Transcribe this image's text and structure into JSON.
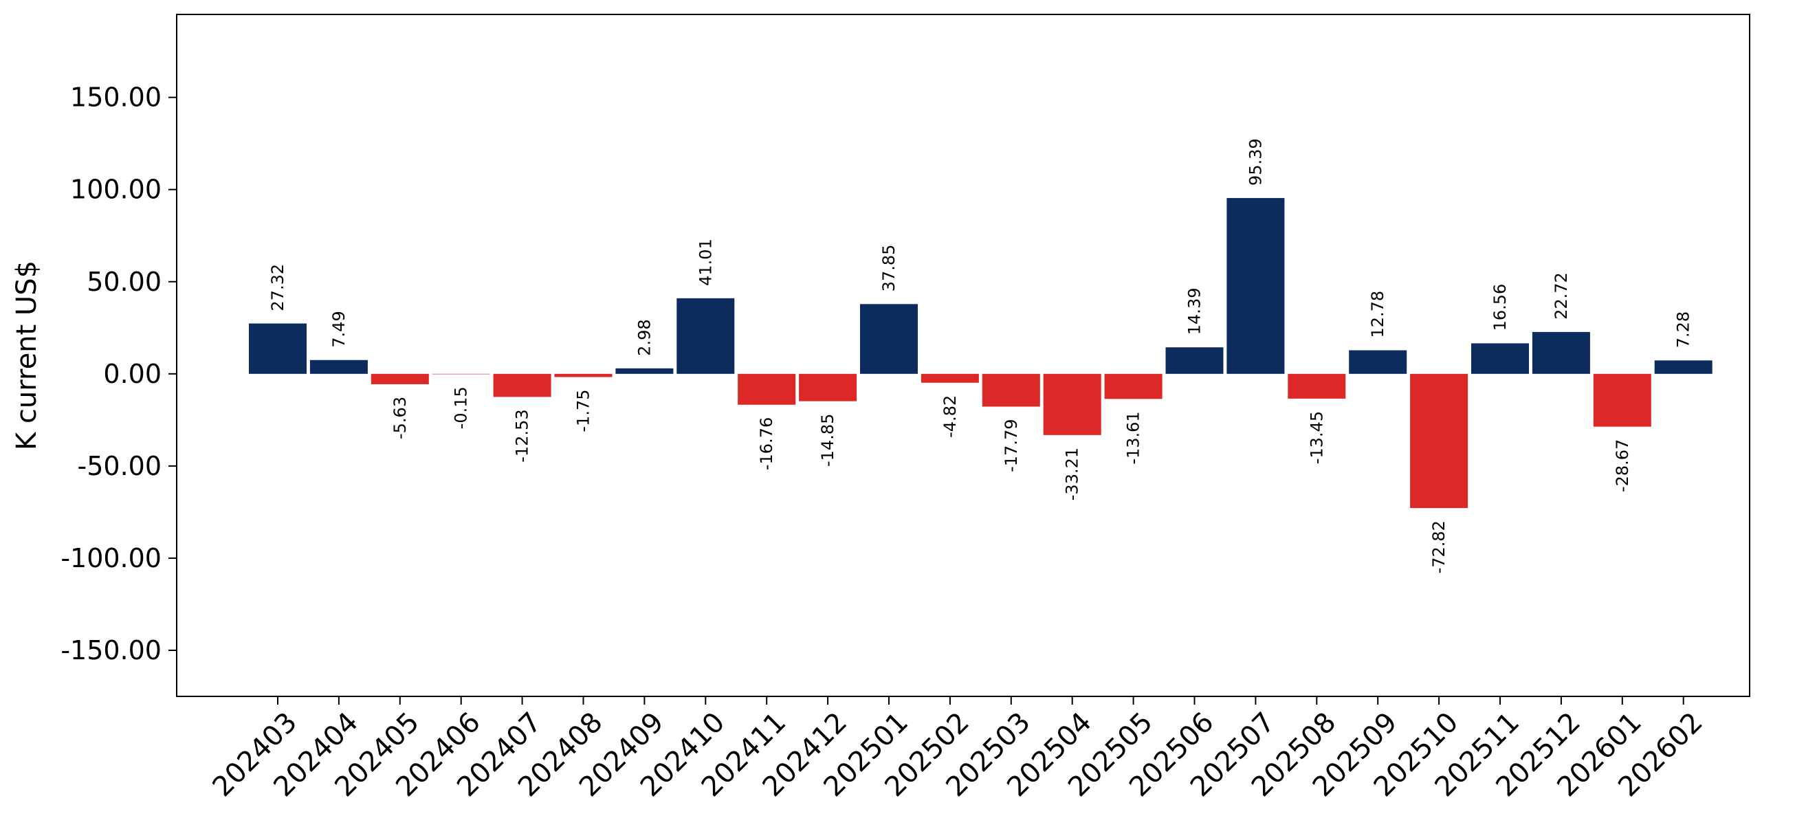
{
  "chart_data": {
    "type": "bar",
    "title": "",
    "xlabel": "",
    "ylabel": "K current US$",
    "ylim": [
      -175,
      195
    ],
    "yticks": [
      -150,
      -100,
      -50,
      0,
      50,
      100,
      150
    ],
    "ytick_labels": [
      "-150.00",
      "-100.00",
      "-50.00",
      "0.00",
      "50.00",
      "100.00",
      "150.00"
    ],
    "grid": false,
    "legend": "none",
    "categories": [
      "202403",
      "202404",
      "202405",
      "202406",
      "202407",
      "202408",
      "202409",
      "202410",
      "202411",
      "202412",
      "202501",
      "202502",
      "202503",
      "202504",
      "202505",
      "202506",
      "202507",
      "202508",
      "202509",
      "202510",
      "202511",
      "202512",
      "202601",
      "202602"
    ],
    "values": [
      27.32,
      7.49,
      -5.63,
      -0.15,
      -12.53,
      -1.75,
      2.98,
      41.01,
      -16.76,
      -14.85,
      37.85,
      -4.82,
      -17.79,
      -33.21,
      -13.61,
      14.39,
      95.39,
      -13.45,
      12.78,
      -72.82,
      16.56,
      22.72,
      -28.67,
      7.28
    ],
    "data_labels": [
      "27.32",
      "7.49",
      "-5.63",
      "-0.15",
      "-12.53",
      "-1.75",
      "2.98",
      "41.01",
      "-16.76",
      "-14.85",
      "37.85",
      "-4.82",
      "-17.79",
      "-33.21",
      "-13.61",
      "14.39",
      "95.39",
      "-13.45",
      "12.78",
      "-72.82",
      "16.56",
      "22.72",
      "-28.67",
      "7.28"
    ],
    "colors": {
      "positive": "#0d2c5e",
      "negative": "#dd2828",
      "axis": "#000000"
    }
  }
}
